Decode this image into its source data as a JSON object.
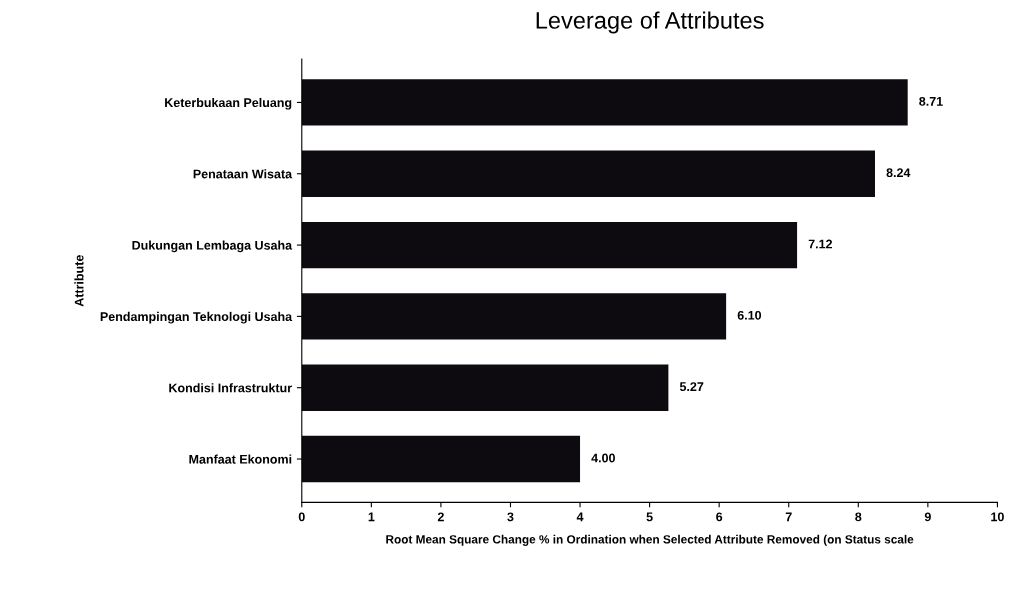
{
  "chart_data": {
    "type": "bar",
    "orientation": "horizontal",
    "title": "Leverage of Attributes",
    "xlabel": "Root Mean Square Change % in Ordination when Selected Attribute Removed (on Status scale",
    "ylabel": "Attribute",
    "categories": [
      "Keterbukaan Peluang",
      "Penataan Wisata",
      "Dukungan Lembaga Usaha",
      "Pendampingan Teknologi Usaha",
      "Kondisi Infrastruktur",
      "Manfaat Ekonomi"
    ],
    "values": [
      8.71,
      8.24,
      7.12,
      6.1,
      5.27,
      4.0
    ],
    "value_labels": [
      "8.71",
      "8.24",
      "7.12",
      "6.10",
      "5.27",
      "4.00"
    ],
    "color": "#0d0a10",
    "xlim": [
      0,
      10
    ],
    "xticks": [
      0,
      1,
      2,
      3,
      4,
      5,
      6,
      7,
      8,
      9,
      10
    ],
    "grid": false,
    "legend": false
  }
}
